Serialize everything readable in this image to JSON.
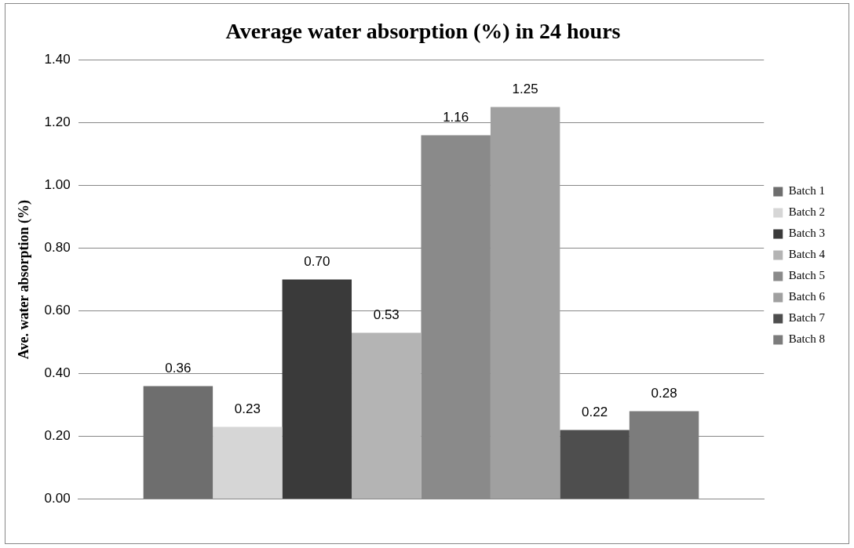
{
  "chart_data": {
    "type": "bar",
    "title": "Average water absorption (%) in 24 hours",
    "ylabel": "Ave. water absorption (%)",
    "categories": [
      null
    ],
    "series": [
      {
        "name": "Batch 1",
        "color": "#6e6e6e",
        "values": [
          0.36
        ],
        "value_labels": [
          "0.36"
        ]
      },
      {
        "name": "Batch 2",
        "color": "#d6d6d6",
        "values": [
          0.23
        ],
        "value_labels": [
          "0.23"
        ]
      },
      {
        "name": "Batch 3",
        "color": "#3a3a3a",
        "values": [
          0.7
        ],
        "value_labels": [
          "0.70"
        ]
      },
      {
        "name": "Batch 4",
        "color": "#b4b4b4",
        "values": [
          0.53
        ],
        "value_labels": [
          "0.53"
        ]
      },
      {
        "name": "Batch 5",
        "color": "#8a8a8a",
        "values": [
          1.16
        ],
        "value_labels": [
          "1.16"
        ]
      },
      {
        "name": "Batch 6",
        "color": "#a0a0a0",
        "values": [
          1.25
        ],
        "value_labels": [
          "1.25"
        ]
      },
      {
        "name": "Batch 7",
        "color": "#4e4e4e",
        "values": [
          0.22
        ],
        "value_labels": [
          "0.22"
        ]
      },
      {
        "name": "Batch 8",
        "color": "#7c7c7c",
        "values": [
          0.28
        ],
        "value_labels": [
          "0.28"
        ]
      }
    ],
    "ylim": [
      0,
      1.4
    ],
    "yticks": [
      {
        "value": 0,
        "label": "0.00"
      },
      {
        "value": 0.2,
        "label": "0.20"
      },
      {
        "value": 0.4,
        "label": "0.40"
      },
      {
        "value": 0.6,
        "label": "0.60"
      },
      {
        "value": 0.8,
        "label": "0.80"
      },
      {
        "value": 1,
        "label": "1.00"
      },
      {
        "value": 1.2,
        "label": "1.20"
      },
      {
        "value": 1.4,
        "label": "1.40"
      }
    ],
    "grid": "y",
    "legend": "right"
  }
}
